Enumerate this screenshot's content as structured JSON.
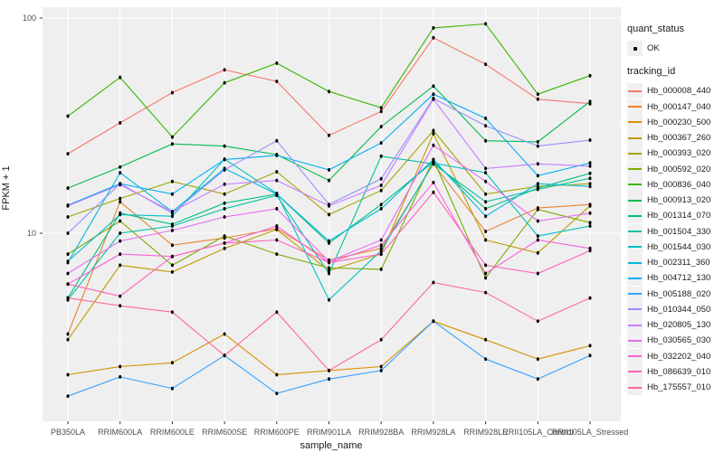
{
  "chart_data": {
    "type": "line",
    "title": "",
    "xlabel": "sample_name",
    "ylabel": "FPKM + 1",
    "y_scale": "log10",
    "ylim": [
      1.3,
      112
    ],
    "y_tick_values": [
      100,
      10
    ],
    "y_tick_labels": [
      "100",
      "10"
    ],
    "y_minor_values": [
      31.62,
      3.162
    ],
    "grid": true,
    "panel_bg": "#efefef",
    "grid_color": "#ffffff",
    "point_color": "#000000",
    "legend_position": "right",
    "categories": [
      "PB350LA",
      "RRIM600LA",
      "RRIM600LE",
      "RRIM600SE",
      "RRIM600PE",
      "RRIM901LA",
      "RRIM928BA",
      "RRIM928LA",
      "RRIM928LE",
      "RRII105LA_Control",
      "RRII105LA_Stressed"
    ],
    "series": [
      {
        "name": "Hb_000008_440",
        "color": "#F8766D",
        "values": [
          23.4,
          32.6,
          45,
          57.5,
          50.8,
          28.5,
          36.8,
          81,
          61,
          42,
          40
        ]
      },
      {
        "name": "Hb_000147_040",
        "color": "#EA8331",
        "values": [
          3.4,
          14,
          8.8,
          9.5,
          10.5,
          7.5,
          8.5,
          21,
          10.2,
          13.1,
          13.6
        ]
      },
      {
        "name": "Hb_000230_500",
        "color": "#D89000",
        "values": [
          2.2,
          2.4,
          2.5,
          3.4,
          2.2,
          2.3,
          2.4,
          3.9,
          3.2,
          2.6,
          3.0
        ]
      },
      {
        "name": "Hb_000367_260",
        "color": "#C09B00",
        "values": [
          3.2,
          7.1,
          6.6,
          8.5,
          10.4,
          6.7,
          8.0,
          29,
          9.3,
          8.1,
          13.4
        ]
      },
      {
        "name": "Hb_000393_020",
        "color": "#A3A500",
        "values": [
          11.9,
          14.5,
          17.4,
          15.2,
          19.3,
          12.2,
          15.8,
          30,
          15.2,
          16.5,
          17
        ]
      },
      {
        "name": "Hb_000592_020",
        "color": "#7CAE00",
        "values": [
          8.0,
          11.4,
          7.1,
          9.7,
          8.0,
          6.9,
          6.8,
          22,
          6.2,
          12.9,
          11.2
        ]
      },
      {
        "name": "Hb_000836_040",
        "color": "#39B600",
        "values": [
          35,
          53,
          28,
          50,
          61.7,
          45.6,
          38.3,
          90,
          94,
          44.3,
          54
        ]
      },
      {
        "name": "Hb_000913_020",
        "color": "#00BB4E",
        "values": [
          16.2,
          20.3,
          26,
          25.4,
          23.2,
          17.6,
          31.3,
          48.3,
          26.9,
          26.6,
          41
        ]
      },
      {
        "name": "Hb_001314_070",
        "color": "#00BF7D",
        "values": [
          5.0,
          12.4,
          11.0,
          13.8,
          15.2,
          9.0,
          13.6,
          21.5,
          13.0,
          16.2,
          19
        ]
      },
      {
        "name": "Hb_001504_330",
        "color": "#00C1A3",
        "values": [
          4.9,
          10.0,
          10.8,
          13.0,
          15.0,
          6.5,
          22.8,
          21.0,
          14.0,
          16.0,
          18
        ]
      },
      {
        "name": "Hb_001544_030",
        "color": "#00BFC4",
        "values": [
          7.4,
          12.2,
          12.0,
          22.1,
          15.3,
          4.9,
          8.3,
          21.2,
          19.1,
          9.7,
          10.8
        ]
      },
      {
        "name": "Hb_002311_360",
        "color": "#00BAE0",
        "values": [
          7.3,
          19.1,
          12.6,
          20.0,
          15.2,
          9.2,
          13.0,
          22.0,
          12.0,
          17.0,
          16.5
        ]
      },
      {
        "name": "Hb_004712_130",
        "color": "#00B0F6",
        "values": [
          13.5,
          17.0,
          15.2,
          22.0,
          23.0,
          19.7,
          26.3,
          44.3,
          34.2,
          18.5,
          21.2
        ]
      },
      {
        "name": "Hb_005188_020",
        "color": "#35A2FF",
        "values": [
          1.75,
          2.15,
          1.9,
          2.7,
          1.8,
          2.1,
          2.3,
          3.9,
          2.6,
          2.1,
          2.7
        ]
      },
      {
        "name": "Hb_010344_050",
        "color": "#9590FF",
        "values": [
          10.0,
          17.0,
          12.4,
          19.7,
          26.9,
          13.6,
          17.9,
          42.3,
          31.6,
          25.4,
          27.1
        ]
      },
      {
        "name": "Hb_020805_130",
        "color": "#C77CFF",
        "values": [
          13.4,
          16.8,
          12.6,
          16.9,
          17.6,
          13.4,
          16.7,
          42.0,
          20.0,
          21.0,
          20.5
        ]
      },
      {
        "name": "Hb_030565_030",
        "color": "#E76BF3",
        "values": [
          6.5,
          9.2,
          10.3,
          11.9,
          13.0,
          7.4,
          9.3,
          25.6,
          17.4,
          11.4,
          12.4
        ]
      },
      {
        "name": "Hb_032202_040",
        "color": "#FA62DB",
        "values": [
          5.8,
          8.0,
          7.8,
          9.0,
          10.8,
          7.3,
          8.8,
          17.2,
          6.5,
          9.3,
          8.5
        ]
      },
      {
        "name": "Hb_086639_010",
        "color": "#FF62BC",
        "values": [
          5.8,
          5.1,
          7.8,
          9.0,
          9.3,
          7.3,
          8.0,
          15.5,
          7.1,
          6.5,
          8.3
        ]
      },
      {
        "name": "Hb_175557_010",
        "color": "#FF6A98",
        "values": [
          5.0,
          4.6,
          4.3,
          2.7,
          4.3,
          2.3,
          3.2,
          5.9,
          5.3,
          3.9,
          5.0
        ]
      }
    ],
    "legend": {
      "quant_status_title": "quant_status",
      "quant_status_items": [
        "OK"
      ],
      "tracking_title": "tracking_id"
    }
  }
}
